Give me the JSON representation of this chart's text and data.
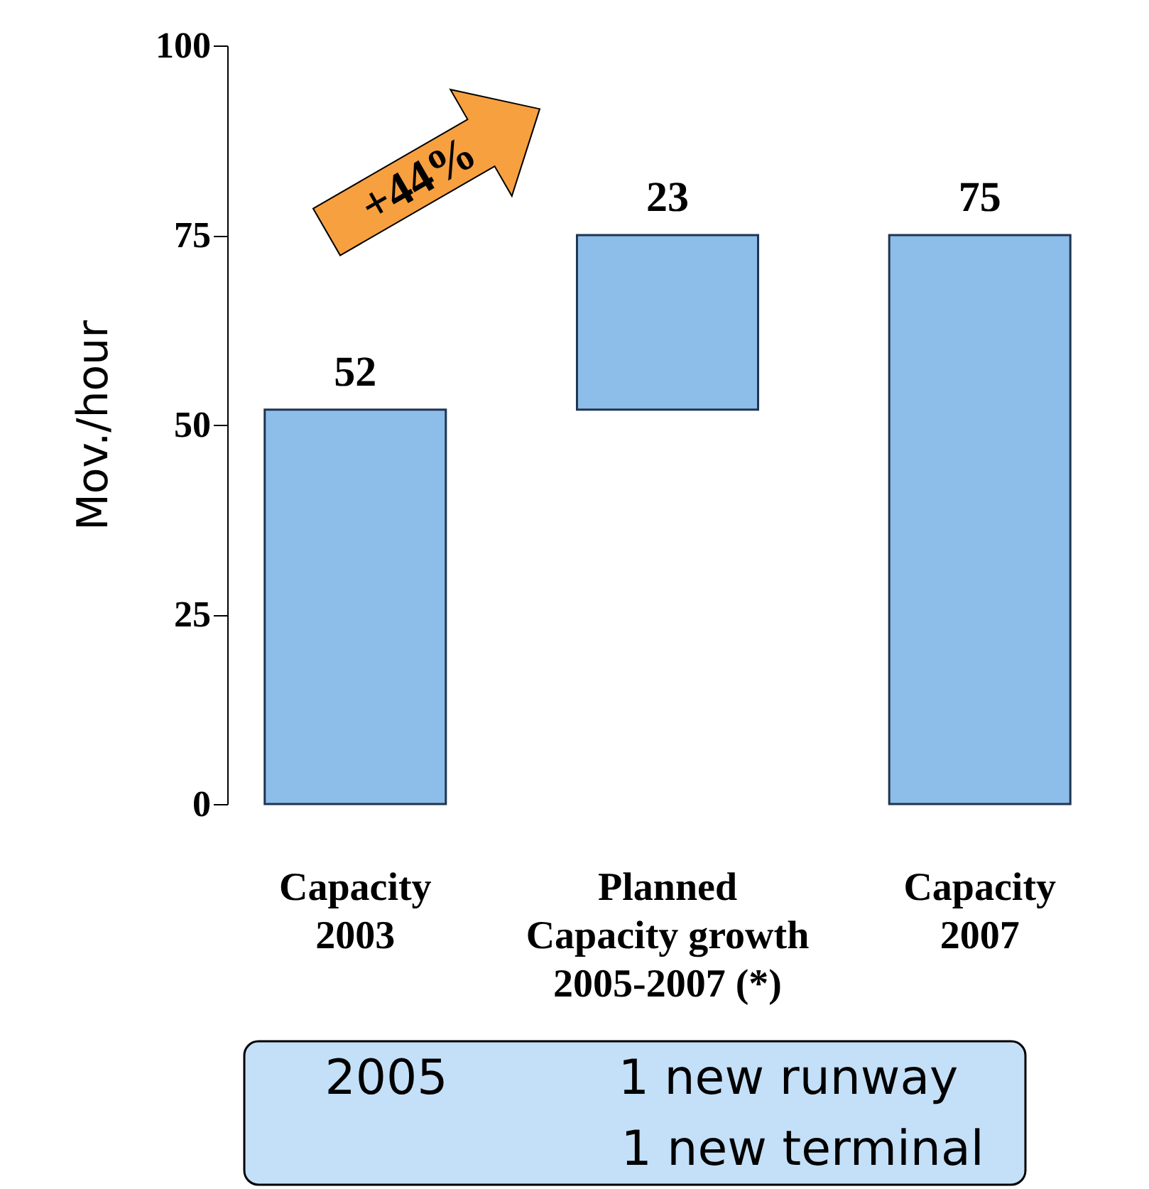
{
  "chart_data": {
    "type": "bar",
    "categories": [
      "Capacity\n2003",
      "Planned\nCapacity growth\n2005-2007 (*)",
      "Capacity\n2007"
    ],
    "values": [
      52,
      23,
      75
    ],
    "base": [
      0,
      52,
      0
    ],
    "color": "#8dbde9",
    "ylabel": "Mov./hour",
    "ylim": [
      0,
      100
    ],
    "yticks": [
      0,
      25,
      50,
      75,
      100
    ],
    "data_labels": true,
    "grid": false,
    "annotations": [
      "+44%",
      "2005",
      "1 new runway",
      "1 new terminal"
    ]
  }
}
